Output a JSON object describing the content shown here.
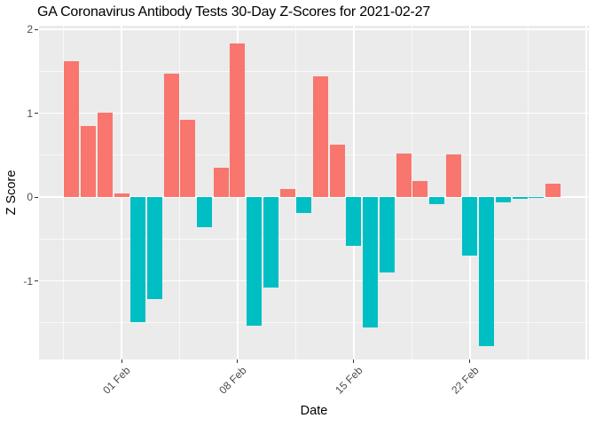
{
  "chart_data": {
    "type": "bar",
    "title": "GA Coronavirus Antibody Tests 30-Day Z-Scores for 2021-02-27",
    "xlabel": "Date",
    "ylabel": "Z Score",
    "categories": [
      "2021-01-29",
      "2021-01-30",
      "2021-01-31",
      "2021-02-01",
      "2021-02-02",
      "2021-02-03",
      "2021-02-04",
      "2021-02-05",
      "2021-02-06",
      "2021-02-07",
      "2021-02-08",
      "2021-02-09",
      "2021-02-10",
      "2021-02-11",
      "2021-02-12",
      "2021-02-13",
      "2021-02-14",
      "2021-02-15",
      "2021-02-16",
      "2021-02-17",
      "2021-02-18",
      "2021-02-19",
      "2021-02-20",
      "2021-02-21",
      "2021-02-22",
      "2021-02-23",
      "2021-02-24",
      "2021-02-25",
      "2021-02-26",
      "2021-02-27"
    ],
    "values": [
      1.62,
      0.85,
      1.01,
      0.04,
      -1.49,
      -1.22,
      1.47,
      0.92,
      -0.36,
      0.35,
      1.83,
      -1.53,
      -1.08,
      0.1,
      -0.19,
      1.44,
      0.62,
      -0.58,
      -1.56,
      -0.9,
      0.52,
      0.19,
      -0.08,
      0.51,
      -0.7,
      -1.78,
      -0.06,
      -0.02,
      -0.01,
      0.16
    ],
    "positive_color": "#F8766D",
    "negative_color": "#00BFC4",
    "panel_background": "#EBEBEB",
    "grid_color": "#FFFFFF",
    "tick_label_color": "#4D4D4D",
    "x_ticks": [
      {
        "label": "01 Feb",
        "index": 3
      },
      {
        "label": "08 Feb",
        "index": 10
      },
      {
        "label": "15 Feb",
        "index": 17
      },
      {
        "label": "22 Feb",
        "index": 24
      }
    ],
    "y_ticks": [
      {
        "label": "2",
        "value": 2
      },
      {
        "label": "1",
        "value": 1
      },
      {
        "label": "0",
        "value": 0
      },
      {
        "label": "-1",
        "value": -1
      }
    ],
    "y_minor_gridlines": [
      1.5,
      0.5,
      -0.5,
      -1.5
    ],
    "ylim": [
      -1.94,
      2.04
    ],
    "grid": true,
    "legend": false
  }
}
